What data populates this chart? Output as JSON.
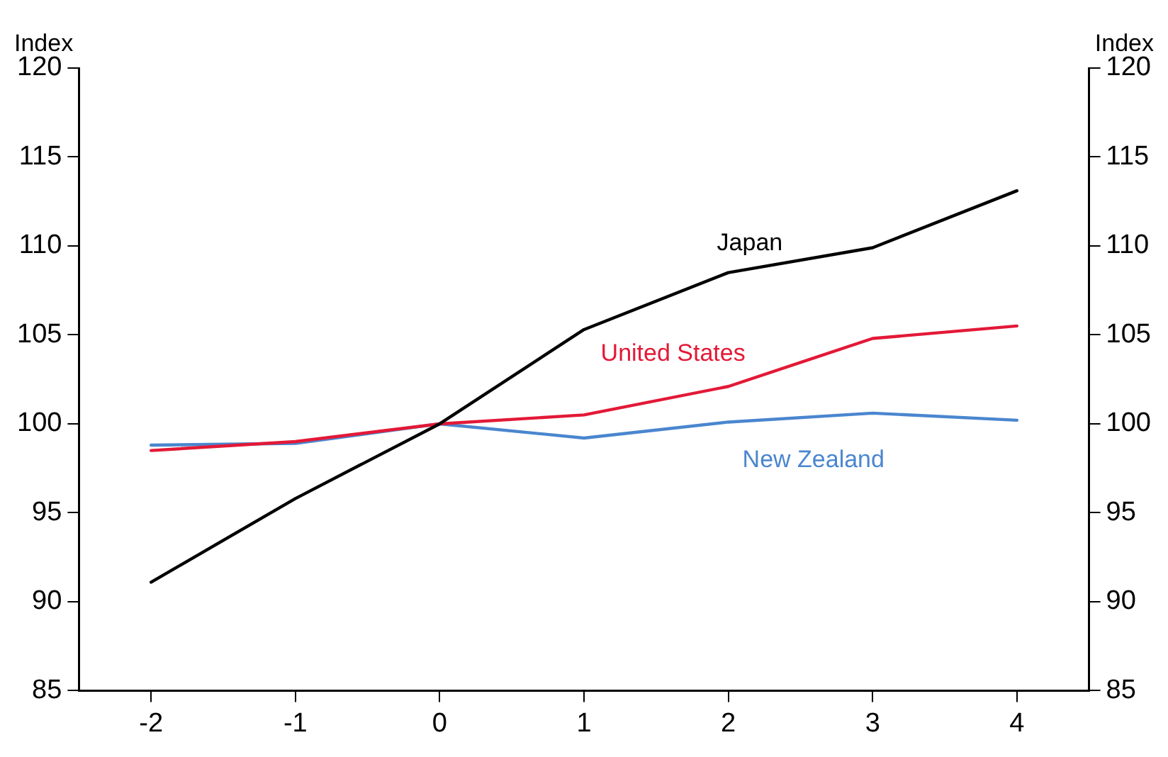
{
  "chart_data": {
    "type": "line",
    "ylabel": "Index",
    "y2label": "Index",
    "x": [
      -2,
      -1,
      0,
      1,
      2,
      3,
      4
    ],
    "xlim": [
      -2.5,
      4.5
    ],
    "xticks": [
      -2,
      -1,
      0,
      1,
      2,
      3,
      4
    ],
    "ylim": [
      85,
      120
    ],
    "yticks": [
      85,
      90,
      95,
      100,
      105,
      110,
      115,
      120
    ],
    "y2lim": [
      85,
      120
    ],
    "y2ticks": [
      85,
      90,
      95,
      100,
      105,
      110,
      115,
      120
    ],
    "series": [
      {
        "name": "Japan",
        "color": "#000000",
        "values": [
          91.1,
          95.8,
          100,
          105.3,
          108.5,
          109.9,
          113.1
        ]
      },
      {
        "name": "United States",
        "color": "#e31937",
        "values": [
          98.5,
          99.0,
          100,
          100.5,
          102.1,
          104.8,
          105.5
        ]
      },
      {
        "name": "New Zealand",
        "color": "#4a86cf",
        "values": [
          98.8,
          98.9,
          100,
          99.2,
          100.1,
          100.6,
          100.2
        ]
      }
    ],
    "grid": false,
    "legend": false,
    "marker": "none",
    "line_style": "solid"
  }
}
